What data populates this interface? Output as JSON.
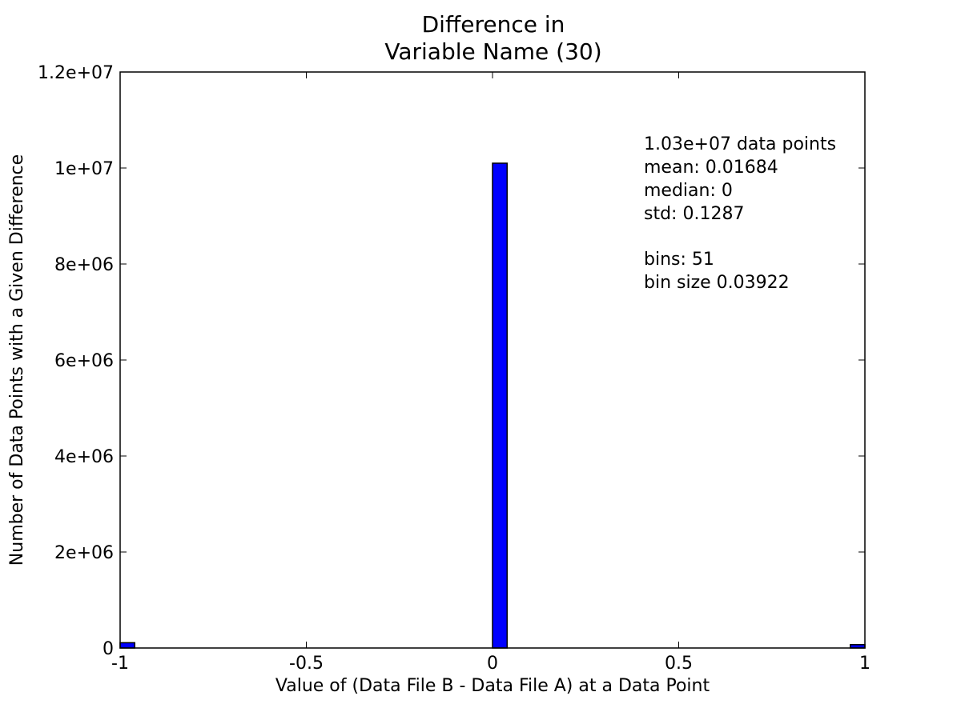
{
  "chart_data": {
    "type": "bar",
    "title_lines": [
      "Difference in",
      "Variable Name (30)"
    ],
    "xlabel": "Value of (Data File B - Data File A) at a Data Point",
    "ylabel": "Number of Data Points with a Given Difference",
    "xlim": [
      -1,
      1
    ],
    "ylim": [
      0,
      12000000
    ],
    "x_ticks": [
      -1,
      -0.5,
      0,
      0.5,
      1
    ],
    "x_tick_labels": [
      "-1",
      "-0.5",
      "0",
      "0.5",
      "1"
    ],
    "y_ticks": [
      0,
      2000000,
      4000000,
      6000000,
      8000000,
      10000000,
      12000000
    ],
    "y_tick_labels": [
      "0",
      "2e+06",
      "4e+06",
      "6e+06",
      "8e+06",
      "1e+07",
      "1.2e+07"
    ],
    "bin_size": 0.03922,
    "bars": [
      {
        "x_start": -1.0,
        "value": 110000
      },
      {
        "x_start": 0.0,
        "value": 10100000
      },
      {
        "x_start": 0.96078,
        "value": 70000
      }
    ],
    "bar_color": "#0000ff",
    "grid": false,
    "stats_lines": [
      "1.03e+07 data points",
      "mean: 0.01684",
      "median: 0",
      "std: 0.1287",
      "",
      "bins: 51",
      "bin size 0.03922"
    ]
  }
}
